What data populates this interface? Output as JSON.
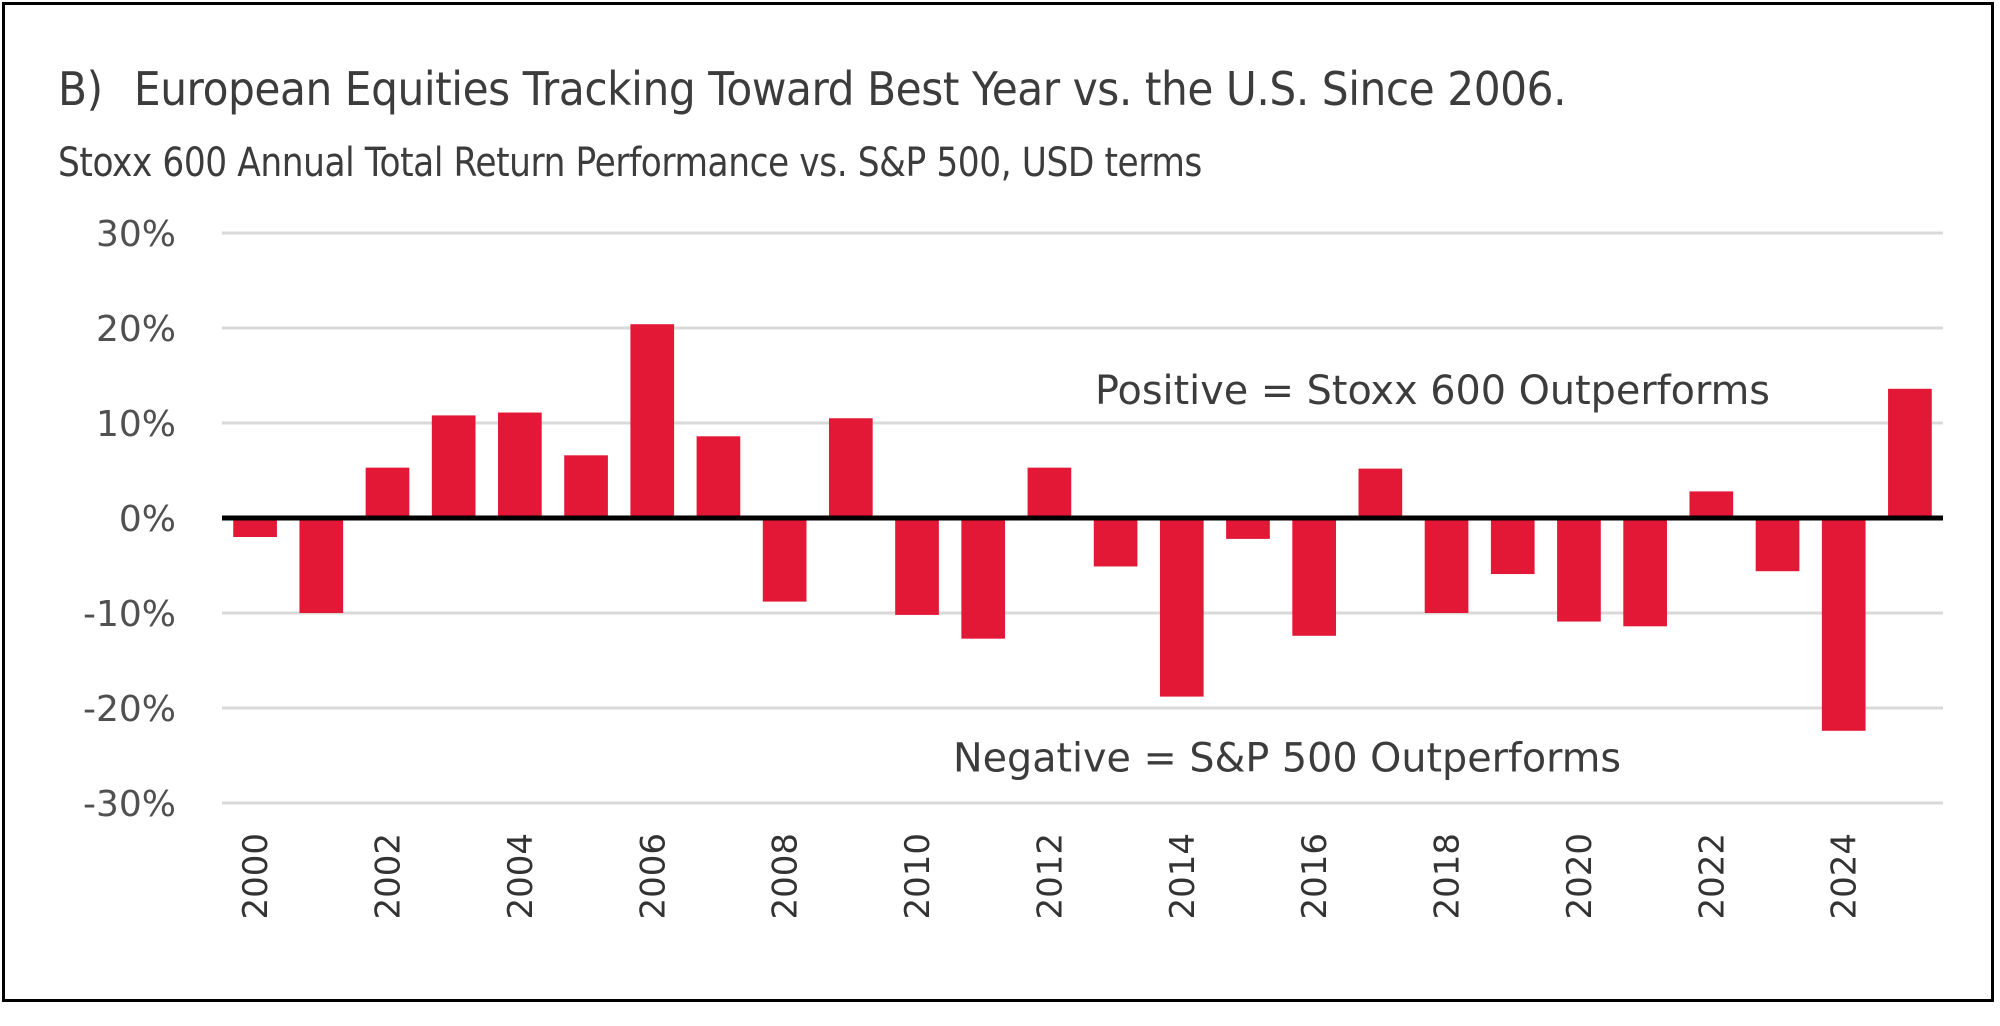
{
  "chart_data": {
    "type": "bar",
    "panel_tag": "B)",
    "title": "European Equities Tracking Toward Best Year vs. the U.S. Since 2006.",
    "subtitle": "Stoxx 600 Annual Total Return Performance vs. S&P 500, USD terms",
    "xlabel": "",
    "ylabel": "",
    "ylim": [
      -30,
      30
    ],
    "yticks": [
      30,
      20,
      10,
      0,
      -10,
      -20,
      -30
    ],
    "ytick_labels": [
      "30%",
      "20%",
      "10%",
      "0%",
      "-10%",
      "-20%",
      "-30%"
    ],
    "categories": [
      "2000",
      "2001",
      "2002",
      "2003",
      "2004",
      "2005",
      "2006",
      "2007",
      "2008",
      "2009",
      "2010",
      "2011",
      "2012",
      "2013",
      "2014",
      "2015",
      "2016",
      "2017",
      "2018",
      "2019",
      "2020",
      "2021",
      "2022",
      "2023",
      "2024",
      "2025"
    ],
    "xtick_labels": [
      "2000",
      "2002",
      "2004",
      "2006",
      "2008",
      "2010",
      "2012",
      "2014",
      "2016",
      "2018",
      "2020",
      "2022",
      "2024"
    ],
    "values": [
      -2.0,
      -10.0,
      5.3,
      10.8,
      11.1,
      6.6,
      20.4,
      8.6,
      -8.8,
      10.5,
      -10.2,
      -12.7,
      5.3,
      -5.1,
      -18.8,
      -2.2,
      -12.4,
      5.2,
      -10.0,
      -5.9,
      -10.9,
      -11.4,
      2.8,
      -5.6,
      -22.4,
      13.6
    ],
    "series": [
      {
        "name": "Stoxx 600 vs. S&P 500 relative total return (USD)",
        "color": "#E31837"
      }
    ],
    "grid": true,
    "zero_line": true,
    "annotations": [
      {
        "text": "Positive = Stoxx 600 Outperforms",
        "anchor_value": 12
      },
      {
        "text": "Negative = S&P 500 Outperforms",
        "anchor_value": -25
      }
    ]
  }
}
